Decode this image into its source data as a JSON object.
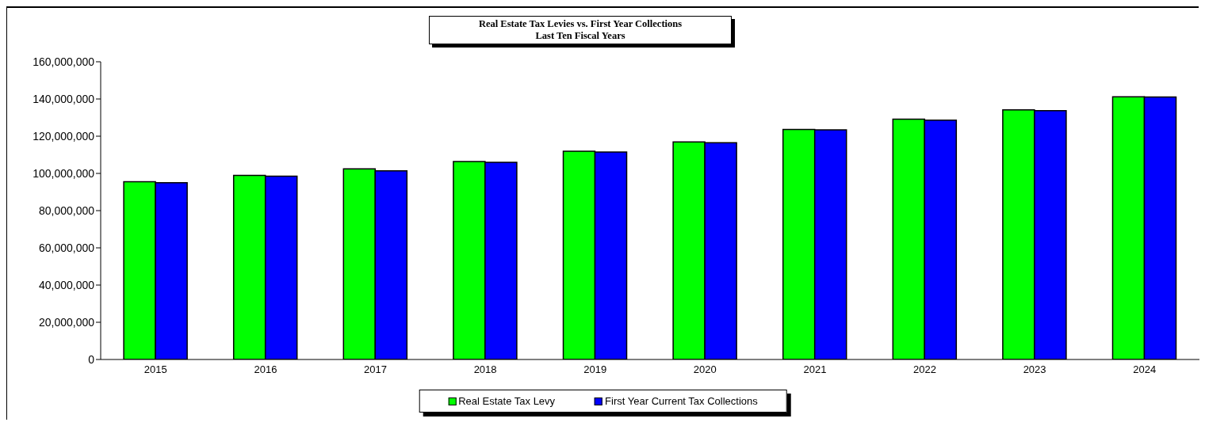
{
  "chart_data": {
    "type": "bar",
    "title": "Real Estate Tax Levies vs. First Year Collections\nLast Ten Fiscal Years",
    "categories": [
      "2015",
      "2016",
      "2017",
      "2018",
      "2019",
      "2020",
      "2021",
      "2022",
      "2023",
      "2024"
    ],
    "series": [
      {
        "name": "Real Estate Tax Levy",
        "color": "#00ff00",
        "values": [
          95500000,
          98900000,
          102500000,
          106400000,
          111900000,
          116900000,
          123600000,
          129200000,
          134200000,
          141200000
        ]
      },
      {
        "name": "First Year Current Tax Collections",
        "color": "#0000ff",
        "values": [
          95000000,
          98500000,
          101400000,
          106000000,
          111500000,
          116500000,
          123400000,
          128600000,
          133700000,
          141100000
        ]
      }
    ],
    "ylim": [
      0,
      160000000
    ],
    "yticks": [
      0,
      {
        "value": 20000000,
        "label": "20,000,000"
      },
      {
        "value": 40000000,
        "label": "40,000,000"
      },
      {
        "value": 60000000,
        "label": "60,000,000"
      },
      {
        "value": 80000000,
        "label": "80,000,000"
      },
      {
        "value": 100000000,
        "label": "100,000,000"
      },
      {
        "value": 120000000,
        "label": "120,000,000"
      },
      {
        "value": 140000000,
        "label": "140,000,000"
      },
      {
        "value": 160000000,
        "label": "160,000,000"
      }
    ],
    "legend": "bottom"
  }
}
